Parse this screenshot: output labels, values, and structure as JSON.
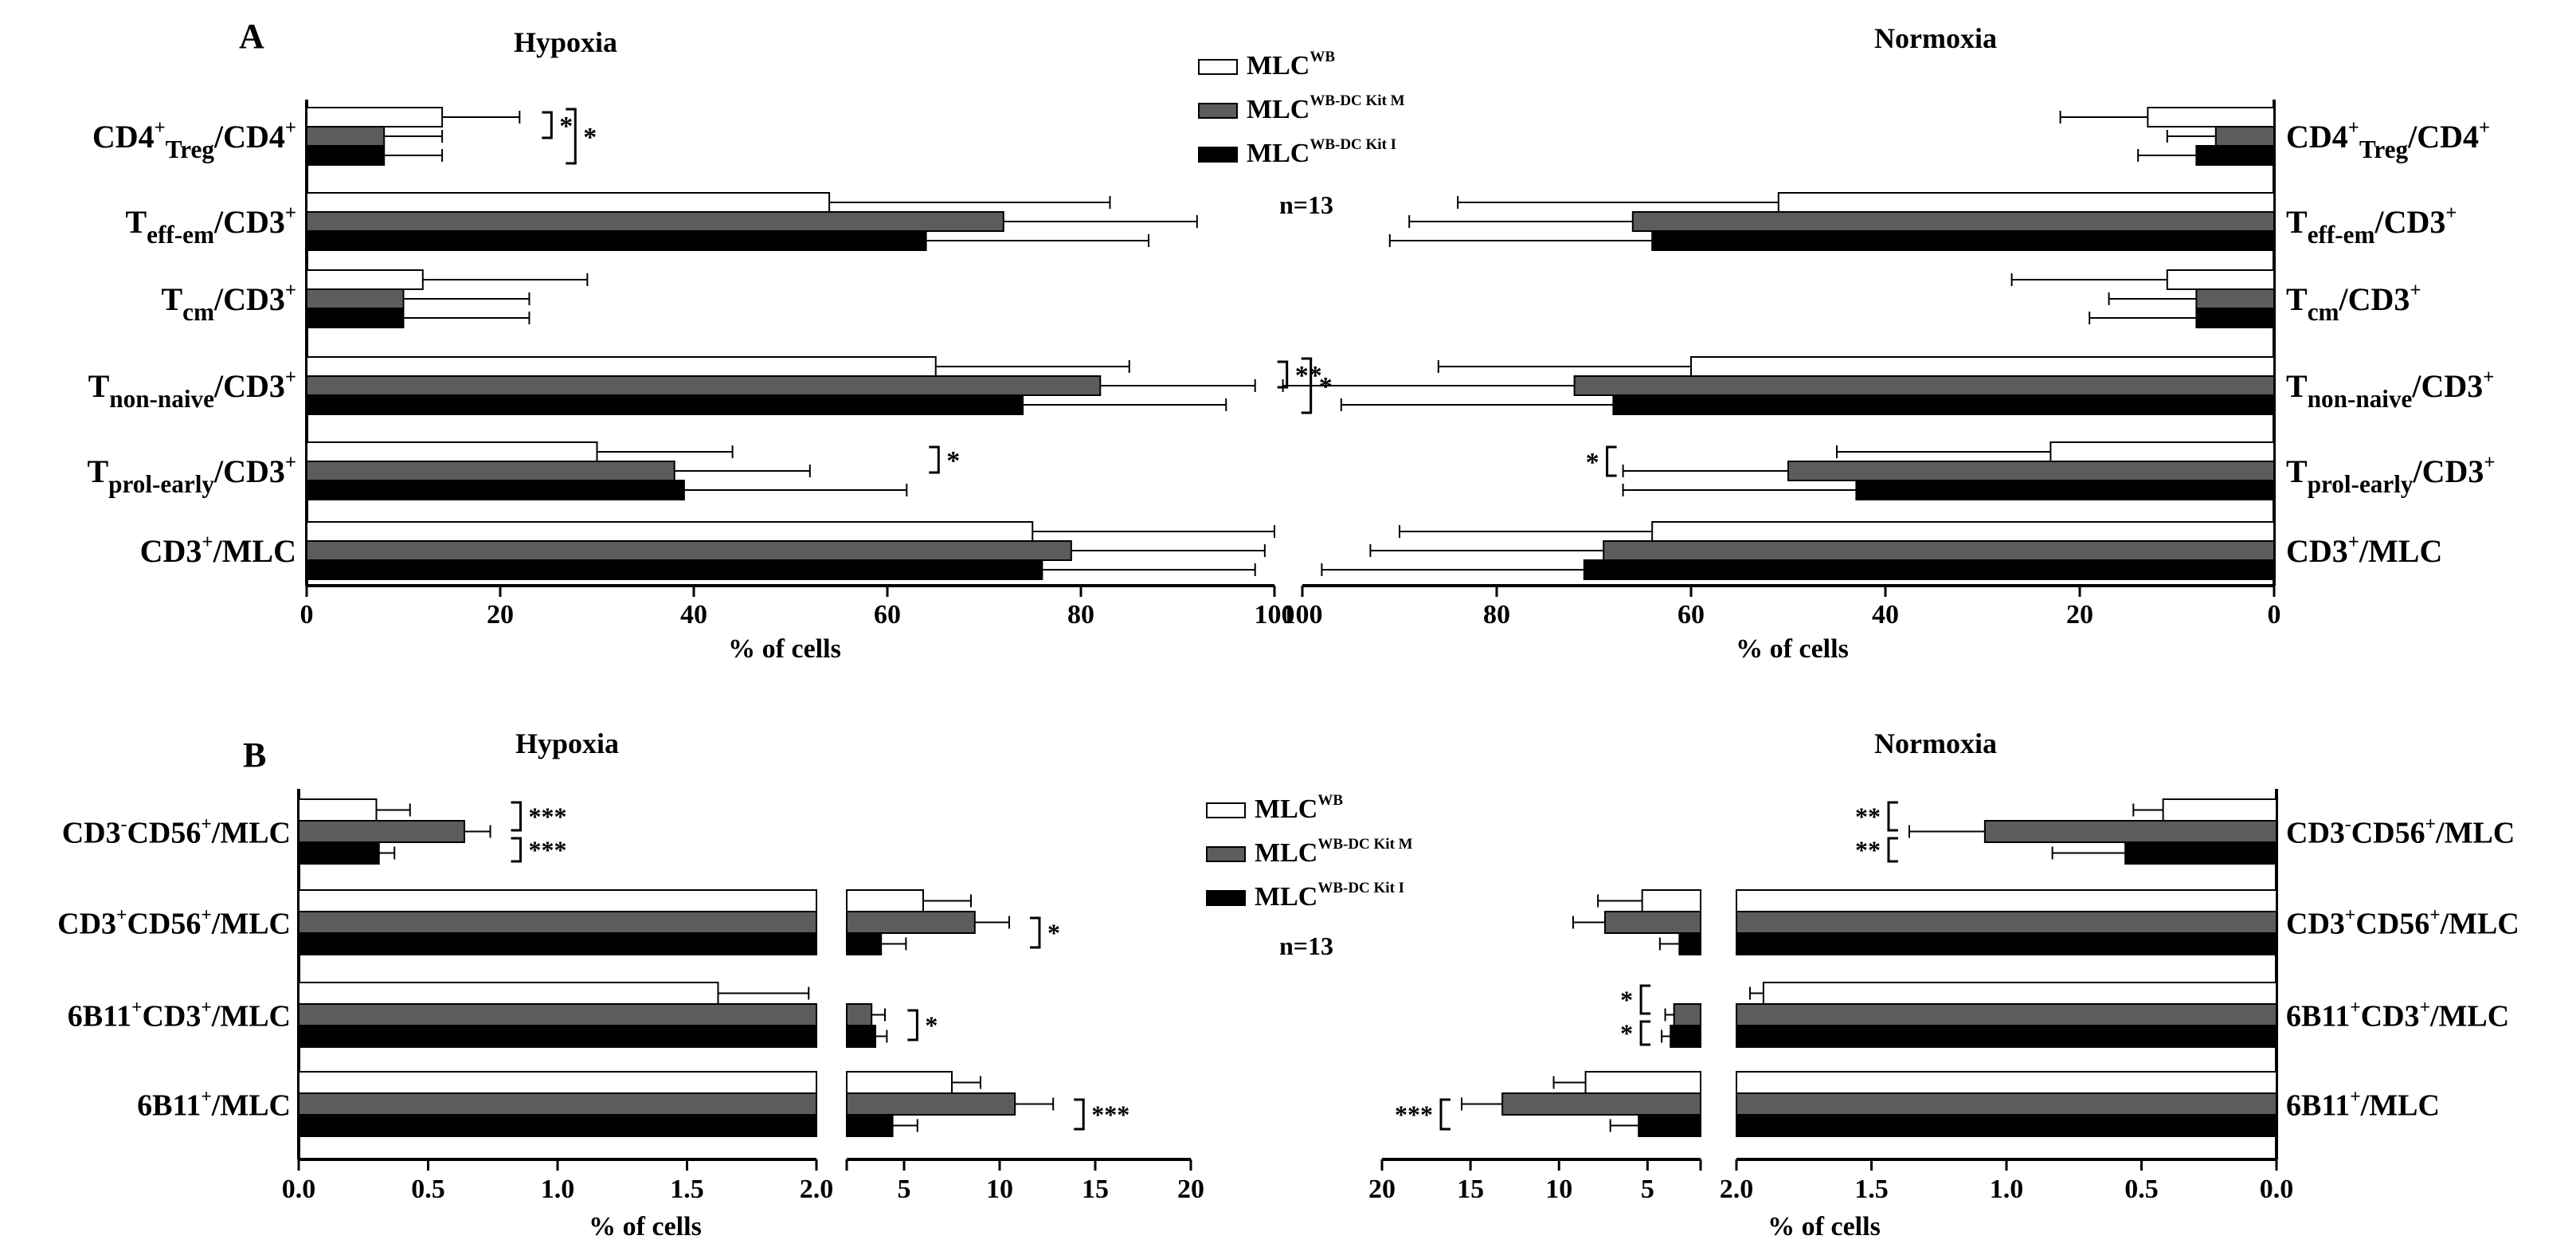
{
  "colors": {
    "wb": "#ffffff",
    "kitm": "#5c5c5c",
    "kiti": "#000000",
    "ink": "#000000"
  },
  "panelA": {
    "letter": "A",
    "hypoxia_title": "Hypoxia",
    "normoxia_title": "Normoxia",
    "n_label": "n=13",
    "legend": [
      {
        "base": "MLC",
        "sup": "WB",
        "color_key": "wb"
      },
      {
        "base": "MLC",
        "sup": "WB-DC Kit M",
        "color_key": "kitm"
      },
      {
        "base": "MLC",
        "sup": "WB-DC Kit I",
        "color_key": "kiti"
      }
    ],
    "xlabel_hyp": "% of  cells",
    "xlabel_norm": "% of  cells",
    "ticks_hyp": [
      "0",
      "20",
      "40",
      "60",
      "80",
      "100"
    ],
    "ticks_norm": [
      "100",
      "80",
      "60",
      "40",
      "20",
      "0"
    ],
    "sig_hyp": [
      {
        "cat": 0,
        "marks": [
          "*",
          "*"
        ]
      },
      {
        "cat": 3,
        "marks": [
          "**",
          "*"
        ]
      },
      {
        "cat": 4,
        "marks": [
          "*"
        ]
      }
    ],
    "sig_norm": [
      {
        "cat": 4,
        "marks": [
          "*"
        ]
      }
    ]
  },
  "panelB": {
    "letter": "B",
    "hypoxia_title": "Hypoxia",
    "normoxia_title": "Normoxia",
    "n_label": "n=13",
    "legend": [
      {
        "base": "MLC",
        "sup": "WB",
        "color_key": "wb"
      },
      {
        "base": "MLC",
        "sup": "WB-DC Kit M",
        "color_key": "kitm"
      },
      {
        "base": "MLC",
        "sup": "WB-DC Kit I",
        "color_key": "kiti"
      }
    ],
    "xlabel_hyp": "% of  cells",
    "xlabel_norm": "% of  cells",
    "ticks_hyp_small": [
      "0.0",
      "0.5",
      "1.0",
      "1.5",
      "2.0"
    ],
    "ticks_hyp_large": [
      "5",
      "10",
      "15",
      "20"
    ],
    "ticks_norm_large": [
      "20",
      "15",
      "10",
      "5"
    ],
    "ticks_norm_small": [
      "2.0",
      "1.5",
      "1.0",
      "0.5",
      "0.0"
    ],
    "sig_hyp": [
      {
        "cat": 0,
        "marks": [
          "***",
          "***"
        ]
      },
      {
        "cat": 1,
        "marks": [
          "*"
        ]
      },
      {
        "cat": 2,
        "marks": [
          "*"
        ]
      },
      {
        "cat": 3,
        "marks": [
          "***"
        ]
      }
    ],
    "sig_norm": [
      {
        "cat": 0,
        "marks": [
          "**",
          "**"
        ]
      },
      {
        "cat": 2,
        "marks": [
          "*",
          "*"
        ]
      },
      {
        "cat": 3,
        "marks": [
          "***"
        ]
      }
    ]
  },
  "chart_data": [
    {
      "type": "bar",
      "title": "Hypoxia",
      "xlabel": "% of  cells",
      "xlim": [
        0,
        100
      ],
      "categories": [
        {
          "main": "CD4",
          "sup": "+",
          "sub": "Treg",
          "rest": "/CD4",
          "rest_sup": "+"
        },
        {
          "main": "T",
          "sub": "eff-em",
          "rest": "/CD3",
          "rest_sup": "+"
        },
        {
          "main": "T",
          "sub": "cm",
          "rest": "/CD3",
          "rest_sup": "+"
        },
        {
          "main": "T",
          "sub": "non-naive",
          "rest": "/CD3",
          "rest_sup": "+"
        },
        {
          "main": "T",
          "sub": "prol-early",
          "rest": "/CD3",
          "rest_sup": "+"
        },
        {
          "main": "CD3",
          "sup": "+",
          "rest": "/MLC"
        }
      ],
      "series": [
        {
          "name": "MLC WB",
          "values": [
            14,
            54,
            12,
            65,
            30,
            75
          ],
          "errors": [
            8,
            29,
            17,
            20,
            14,
            25
          ]
        },
        {
          "name": "MLC WB-DC Kit M",
          "values": [
            8,
            72,
            10,
            82,
            38,
            79
          ],
          "errors": [
            6,
            20,
            13,
            16,
            14,
            20
          ]
        },
        {
          "name": "MLC WB-DC Kit I",
          "values": [
            8,
            64,
            10,
            74,
            39,
            76
          ],
          "errors": [
            6,
            23,
            13,
            21,
            23,
            22
          ]
        }
      ]
    },
    {
      "type": "bar",
      "title": "Normoxia",
      "xlabel": "% of  cells",
      "xlim": [
        100,
        0
      ],
      "categories": [
        {
          "main": "CD4",
          "sup": "+",
          "sub": "Treg",
          "rest": "/CD4",
          "rest_sup": "+"
        },
        {
          "main": "T",
          "sub": "eff-em",
          "rest": "/CD3",
          "rest_sup": "+"
        },
        {
          "main": "T",
          "sub": "cm",
          "rest": "/CD3",
          "rest_sup": "+"
        },
        {
          "main": "T",
          "sub": "non-naive",
          "rest": "/CD3",
          "rest_sup": "+"
        },
        {
          "main": "T",
          "sub": "prol-early",
          "rest": "/CD3",
          "rest_sup": "+"
        },
        {
          "main": "CD3",
          "sup": "+",
          "rest": "/MLC"
        }
      ],
      "series": [
        {
          "name": "MLC WB",
          "values": [
            13,
            51,
            11,
            60,
            23,
            64
          ],
          "errors": [
            9,
            33,
            16,
            26,
            22,
            26
          ]
        },
        {
          "name": "MLC WB-DC Kit M",
          "values": [
            6,
            66,
            8,
            72,
            50,
            69
          ],
          "errors": [
            5,
            23,
            9,
            30,
            17,
            24
          ]
        },
        {
          "name": "MLC WB-DC Kit I",
          "values": [
            8,
            64,
            8,
            68,
            43,
            71
          ],
          "errors": [
            6,
            27,
            11,
            28,
            24,
            27
          ]
        }
      ]
    },
    {
      "type": "bar",
      "title": "Hypoxia",
      "xlabel": "% of  cells",
      "x_axis_broken": true,
      "xlim_segments": [
        [
          0,
          2
        ],
        [
          2,
          20
        ]
      ],
      "categories": [
        {
          "main": "CD3",
          "sup": "-",
          "rest": "CD56",
          "rest_sup": "+",
          "tail": "/MLC"
        },
        {
          "main": "CD3",
          "sup": "+",
          "rest": "CD56",
          "rest_sup": "+",
          "tail": "/MLC"
        },
        {
          "main": "6B11",
          "sup": "+",
          "rest": "CD3",
          "rest_sup": "+",
          "tail": "/MLC"
        },
        {
          "main": "6B11",
          "sup": "+",
          "rest": "/MLC"
        }
      ],
      "series": [
        {
          "name": "MLC WB",
          "values": [
            0.3,
            6,
            1.62,
            7.5
          ],
          "errors": [
            0.13,
            2.5,
            0.35,
            1.5
          ]
        },
        {
          "name": "MLC WB-DC Kit M",
          "values": [
            0.64,
            8.7,
            3.3,
            10.8
          ],
          "errors": [
            0.1,
            1.8,
            0.7,
            2.0
          ]
        },
        {
          "name": "MLC WB-DC Kit I",
          "values": [
            0.31,
            3.8,
            3.5,
            4.4
          ],
          "errors": [
            0.06,
            1.3,
            0.6,
            1.3
          ]
        }
      ]
    },
    {
      "type": "bar",
      "title": "Normoxia",
      "xlabel": "% of  cells",
      "x_axis_broken": true,
      "xlim_segments": [
        [
          20,
          2
        ],
        [
          2,
          0
        ]
      ],
      "categories": [
        {
          "main": "CD3",
          "sup": "-",
          "rest": "CD56",
          "rest_sup": "+",
          "tail": "/MLC"
        },
        {
          "main": "CD3",
          "sup": "+",
          "rest": "CD56",
          "rest_sup": "+",
          "tail": "/MLC"
        },
        {
          "main": "6B11",
          "sup": "+",
          "rest": "CD3",
          "rest_sup": "+",
          "tail": "/MLC"
        },
        {
          "main": "6B11",
          "sup": "+",
          "rest": "/MLC"
        }
      ],
      "series": [
        {
          "name": "MLC WB",
          "values": [
            0.42,
            5.3,
            1.9,
            8.5
          ],
          "errors": [
            0.11,
            2.5,
            0.05,
            1.8
          ]
        },
        {
          "name": "MLC WB-DC Kit M",
          "values": [
            1.08,
            7.4,
            3.5,
            13.2
          ],
          "errors": [
            0.28,
            1.8,
            0.5,
            2.3
          ]
        },
        {
          "name": "MLC WB-DC Kit I",
          "values": [
            0.56,
            3.2,
            3.7,
            5.5
          ],
          "errors": [
            0.27,
            1.1,
            0.5,
            1.6
          ]
        }
      ]
    }
  ]
}
